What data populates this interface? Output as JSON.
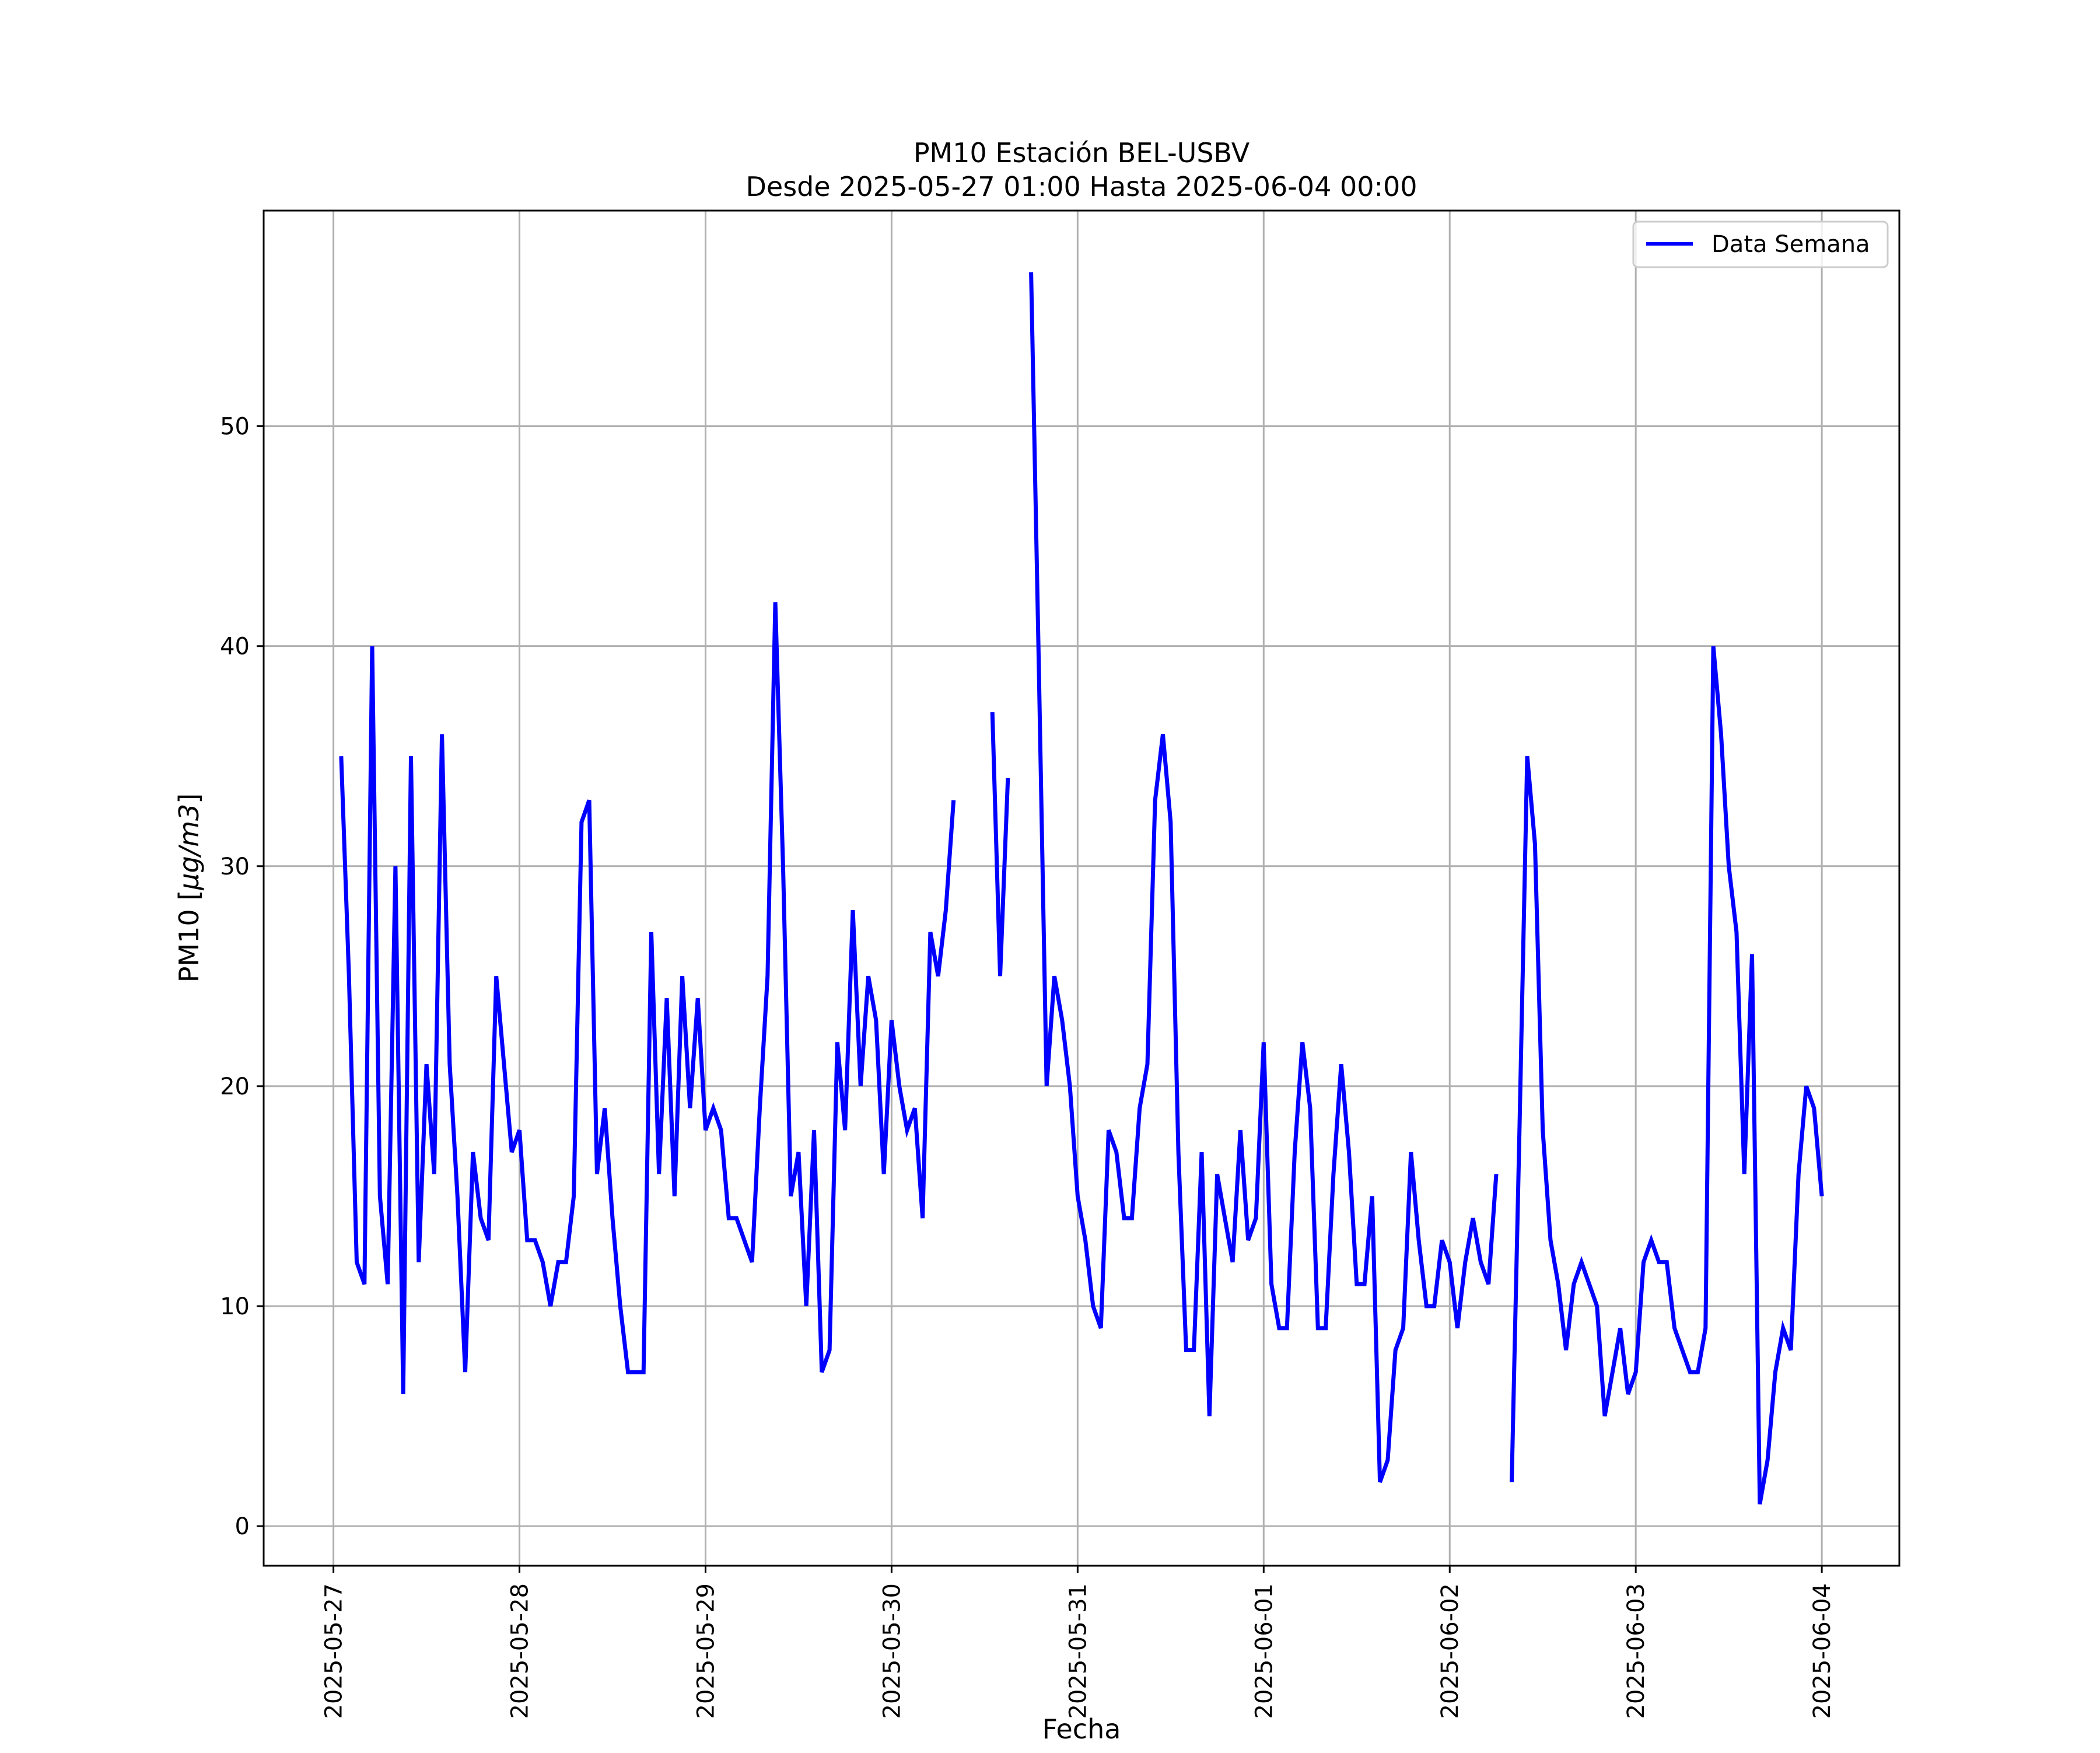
{
  "chart_data": {
    "type": "line",
    "title": "PM10 Estación BEL-USBV",
    "subtitle": "Desde 2025-05-27 01:00 Hasta 2025-06-04 00:00",
    "xlabel": "Fecha",
    "ylabel_text": "PM10 [",
    "ylabel_unit": "μg/m3",
    "ylabel_close": "]",
    "xlim": [
      "2025-05-26 15:00",
      "2025-06-04 10:00"
    ],
    "ylim": [
      -1.8,
      59.8
    ],
    "x_ticks": [
      "2025-05-27",
      "2025-05-28",
      "2025-05-29",
      "2025-05-30",
      "2025-05-31",
      "2025-06-01",
      "2025-06-02",
      "2025-06-03",
      "2025-06-04"
    ],
    "y_ticks": [
      0,
      10,
      20,
      30,
      40,
      50
    ],
    "grid": true,
    "legend_position": "top-right",
    "series": [
      {
        "name": "Data Semana",
        "color": "#0000ff",
        "points": [
          [
            "2025-05-27 01:00",
            35
          ],
          [
            "2025-05-27 02:00",
            25
          ],
          [
            "2025-05-27 03:00",
            12
          ],
          [
            "2025-05-27 04:00",
            11
          ],
          [
            "2025-05-27 05:00",
            40
          ],
          [
            "2025-05-27 06:00",
            15
          ],
          [
            "2025-05-27 07:00",
            11
          ],
          [
            "2025-05-27 08:00",
            30
          ],
          [
            "2025-05-27 09:00",
            6
          ],
          [
            "2025-05-27 10:00",
            35
          ],
          [
            "2025-05-27 11:00",
            12
          ],
          [
            "2025-05-27 12:00",
            21
          ],
          [
            "2025-05-27 13:00",
            16
          ],
          [
            "2025-05-27 14:00",
            36
          ],
          [
            "2025-05-27 15:00",
            21
          ],
          [
            "2025-05-27 16:00",
            15
          ],
          [
            "2025-05-27 17:00",
            7
          ],
          [
            "2025-05-27 18:00",
            17
          ],
          [
            "2025-05-27 19:00",
            14
          ],
          [
            "2025-05-27 20:00",
            13
          ],
          [
            "2025-05-27 21:00",
            25
          ],
          [
            "2025-05-27 22:00",
            21
          ],
          [
            "2025-05-27 23:00",
            17
          ],
          [
            "2025-05-28 00:00",
            18
          ],
          [
            "2025-05-28 01:00",
            13
          ],
          [
            "2025-05-28 02:00",
            13
          ],
          [
            "2025-05-28 03:00",
            12
          ],
          [
            "2025-05-28 04:00",
            10
          ],
          [
            "2025-05-28 05:00",
            12
          ],
          [
            "2025-05-28 06:00",
            12
          ],
          [
            "2025-05-28 07:00",
            15
          ],
          [
            "2025-05-28 08:00",
            32
          ],
          [
            "2025-05-28 09:00",
            33
          ],
          [
            "2025-05-28 10:00",
            16
          ],
          [
            "2025-05-28 11:00",
            19
          ],
          [
            "2025-05-28 12:00",
            14
          ],
          [
            "2025-05-28 13:00",
            10
          ],
          [
            "2025-05-28 14:00",
            7
          ],
          [
            "2025-05-28 15:00",
            7
          ],
          [
            "2025-05-28 16:00",
            7
          ],
          [
            "2025-05-28 17:00",
            27
          ],
          [
            "2025-05-28 18:00",
            16
          ],
          [
            "2025-05-28 19:00",
            24
          ],
          [
            "2025-05-28 20:00",
            15
          ],
          [
            "2025-05-28 21:00",
            25
          ],
          [
            "2025-05-28 22:00",
            19
          ],
          [
            "2025-05-28 23:00",
            24
          ],
          [
            "2025-05-29 00:00",
            18
          ],
          [
            "2025-05-29 01:00",
            19
          ],
          [
            "2025-05-29 02:00",
            18
          ],
          [
            "2025-05-29 03:00",
            14
          ],
          [
            "2025-05-29 04:00",
            14
          ],
          [
            "2025-05-29 05:00",
            13
          ],
          [
            "2025-05-29 06:00",
            12
          ],
          [
            "2025-05-29 07:00",
            19
          ],
          [
            "2025-05-29 08:00",
            25
          ],
          [
            "2025-05-29 09:00",
            42
          ],
          [
            "2025-05-29 10:00",
            30
          ],
          [
            "2025-05-29 11:00",
            15
          ],
          [
            "2025-05-29 12:00",
            17
          ],
          [
            "2025-05-29 13:00",
            10
          ],
          [
            "2025-05-29 14:00",
            18
          ],
          [
            "2025-05-29 15:00",
            7
          ],
          [
            "2025-05-29 16:00",
            8
          ],
          [
            "2025-05-29 17:00",
            22
          ],
          [
            "2025-05-29 18:00",
            18
          ],
          [
            "2025-05-29 19:00",
            28
          ],
          [
            "2025-05-29 20:00",
            20
          ],
          [
            "2025-05-29 21:00",
            25
          ],
          [
            "2025-05-29 22:00",
            23
          ],
          [
            "2025-05-29 23:00",
            16
          ],
          [
            "2025-05-30 00:00",
            23
          ],
          [
            "2025-05-30 01:00",
            20
          ],
          [
            "2025-05-30 02:00",
            18
          ],
          [
            "2025-05-30 03:00",
            19
          ],
          [
            "2025-05-30 04:00",
            14
          ],
          [
            "2025-05-30 05:00",
            27
          ],
          [
            "2025-05-30 06:00",
            25
          ],
          [
            "2025-05-30 07:00",
            28
          ],
          [
            "2025-05-30 08:00",
            33
          ],
          [
            "2025-05-30 09:00",
            null
          ],
          [
            "2025-05-30 10:00",
            null
          ],
          [
            "2025-05-30 11:00",
            null
          ],
          [
            "2025-05-30 12:00",
            null
          ],
          [
            "2025-05-30 13:00",
            37
          ],
          [
            "2025-05-30 14:00",
            25
          ],
          [
            "2025-05-30 15:00",
            34
          ],
          [
            "2025-05-30 16:00",
            null
          ],
          [
            "2025-05-30 17:00",
            null
          ],
          [
            "2025-05-30 18:00",
            57
          ],
          [
            "2025-05-30 19:00",
            39
          ],
          [
            "2025-05-30 20:00",
            20
          ],
          [
            "2025-05-30 21:00",
            25
          ],
          [
            "2025-05-30 22:00",
            23
          ],
          [
            "2025-05-30 23:00",
            20
          ],
          [
            "2025-05-31 00:00",
            15
          ],
          [
            "2025-05-31 01:00",
            13
          ],
          [
            "2025-05-31 02:00",
            10
          ],
          [
            "2025-05-31 03:00",
            9
          ],
          [
            "2025-05-31 04:00",
            18
          ],
          [
            "2025-05-31 05:00",
            17
          ],
          [
            "2025-05-31 06:00",
            14
          ],
          [
            "2025-05-31 07:00",
            14
          ],
          [
            "2025-05-31 08:00",
            19
          ],
          [
            "2025-05-31 09:00",
            21
          ],
          [
            "2025-05-31 10:00",
            33
          ],
          [
            "2025-05-31 11:00",
            36
          ],
          [
            "2025-05-31 12:00",
            32
          ],
          [
            "2025-05-31 13:00",
            17
          ],
          [
            "2025-05-31 14:00",
            8
          ],
          [
            "2025-05-31 15:00",
            8
          ],
          [
            "2025-05-31 16:00",
            17
          ],
          [
            "2025-05-31 17:00",
            5
          ],
          [
            "2025-05-31 18:00",
            16
          ],
          [
            "2025-05-31 19:00",
            14
          ],
          [
            "2025-05-31 20:00",
            12
          ],
          [
            "2025-05-31 21:00",
            18
          ],
          [
            "2025-05-31 22:00",
            13
          ],
          [
            "2025-05-31 23:00",
            14
          ],
          [
            "2025-06-01 00:00",
            22
          ],
          [
            "2025-06-01 01:00",
            11
          ],
          [
            "2025-06-01 02:00",
            9
          ],
          [
            "2025-06-01 03:00",
            9
          ],
          [
            "2025-06-01 04:00",
            17
          ],
          [
            "2025-06-01 05:00",
            22
          ],
          [
            "2025-06-01 06:00",
            19
          ],
          [
            "2025-06-01 07:00",
            9
          ],
          [
            "2025-06-01 08:00",
            9
          ],
          [
            "2025-06-01 09:00",
            16
          ],
          [
            "2025-06-01 10:00",
            21
          ],
          [
            "2025-06-01 11:00",
            17
          ],
          [
            "2025-06-01 12:00",
            11
          ],
          [
            "2025-06-01 13:00",
            11
          ],
          [
            "2025-06-01 14:00",
            15
          ],
          [
            "2025-06-01 15:00",
            2
          ],
          [
            "2025-06-01 16:00",
            3
          ],
          [
            "2025-06-01 17:00",
            8
          ],
          [
            "2025-06-01 18:00",
            9
          ],
          [
            "2025-06-01 19:00",
            17
          ],
          [
            "2025-06-01 20:00",
            13
          ],
          [
            "2025-06-01 21:00",
            10
          ],
          [
            "2025-06-01 22:00",
            10
          ],
          [
            "2025-06-01 23:00",
            13
          ],
          [
            "2025-06-02 00:00",
            12
          ],
          [
            "2025-06-02 01:00",
            9
          ],
          [
            "2025-06-02 02:00",
            12
          ],
          [
            "2025-06-02 03:00",
            14
          ],
          [
            "2025-06-02 04:00",
            12
          ],
          [
            "2025-06-02 05:00",
            11
          ],
          [
            "2025-06-02 06:00",
            16
          ],
          [
            "2025-06-02 07:00",
            null
          ],
          [
            "2025-06-02 08:00",
            2
          ],
          [
            "2025-06-02 09:00",
            18
          ],
          [
            "2025-06-02 10:00",
            35
          ],
          [
            "2025-06-02 11:00",
            31
          ],
          [
            "2025-06-02 12:00",
            18
          ],
          [
            "2025-06-02 13:00",
            13
          ],
          [
            "2025-06-02 14:00",
            11
          ],
          [
            "2025-06-02 15:00",
            8
          ],
          [
            "2025-06-02 16:00",
            11
          ],
          [
            "2025-06-02 17:00",
            12
          ],
          [
            "2025-06-02 18:00",
            11
          ],
          [
            "2025-06-02 19:00",
            10
          ],
          [
            "2025-06-02 20:00",
            5
          ],
          [
            "2025-06-02 21:00",
            7
          ],
          [
            "2025-06-02 22:00",
            9
          ],
          [
            "2025-06-02 23:00",
            6
          ],
          [
            "2025-06-03 00:00",
            7
          ],
          [
            "2025-06-03 01:00",
            12
          ],
          [
            "2025-06-03 02:00",
            13
          ],
          [
            "2025-06-03 03:00",
            12
          ],
          [
            "2025-06-03 04:00",
            12
          ],
          [
            "2025-06-03 05:00",
            9
          ],
          [
            "2025-06-03 06:00",
            8
          ],
          [
            "2025-06-03 07:00",
            7
          ],
          [
            "2025-06-03 08:00",
            7
          ],
          [
            "2025-06-03 09:00",
            9
          ],
          [
            "2025-06-03 10:00",
            40
          ],
          [
            "2025-06-03 11:00",
            36
          ],
          [
            "2025-06-03 12:00",
            30
          ],
          [
            "2025-06-03 13:00",
            27
          ],
          [
            "2025-06-03 14:00",
            16
          ],
          [
            "2025-06-03 15:00",
            26
          ],
          [
            "2025-06-03 16:00",
            1
          ],
          [
            "2025-06-03 17:00",
            3
          ],
          [
            "2025-06-03 18:00",
            7
          ],
          [
            "2025-06-03 19:00",
            9
          ],
          [
            "2025-06-03 20:00",
            8
          ],
          [
            "2025-06-03 21:00",
            16
          ],
          [
            "2025-06-03 22:00",
            20
          ],
          [
            "2025-06-03 23:00",
            19
          ],
          [
            "2025-06-04 00:00",
            15
          ]
        ]
      }
    ]
  }
}
